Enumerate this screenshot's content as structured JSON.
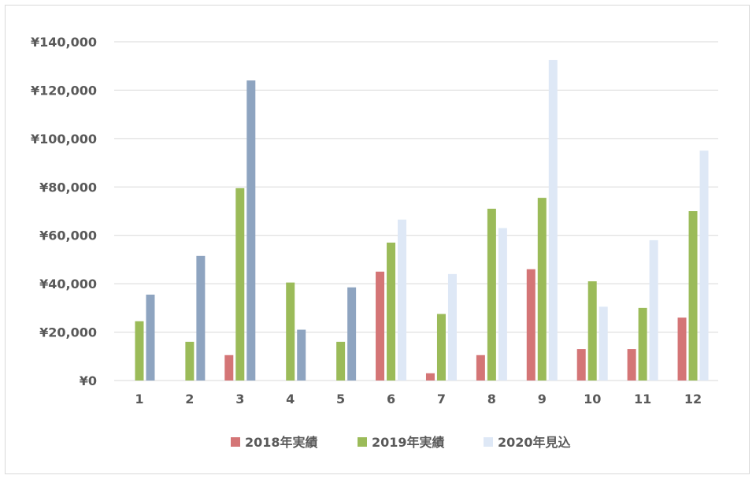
{
  "chart_data": {
    "type": "bar",
    "title": "",
    "xlabel": "",
    "ylabel": "",
    "ylim": [
      0,
      140000
    ],
    "y_ticks": [
      0,
      20000,
      40000,
      60000,
      80000,
      100000,
      120000,
      140000
    ],
    "y_tick_labels": [
      "¥0",
      "¥20,000",
      "¥40,000",
      "¥60,000",
      "¥80,000",
      "¥100,000",
      "¥120,000",
      "¥140,000"
    ],
    "categories": [
      "1",
      "2",
      "3",
      "4",
      "5",
      "6",
      "7",
      "8",
      "9",
      "10",
      "11",
      "12"
    ],
    "grid": true,
    "legend_position": "bottom",
    "series": [
      {
        "name": "2018年実績",
        "color": "#d47576",
        "values": [
          0,
          0,
          10500,
          0,
          0,
          45000,
          3000,
          10500,
          46000,
          13000,
          13000,
          26000
        ]
      },
      {
        "name": "2019年実績",
        "color": "#9bbb59",
        "values": [
          24500,
          16000,
          79500,
          40500,
          16000,
          57000,
          27500,
          71000,
          75500,
          41000,
          30000,
          70000
        ]
      },
      {
        "name": "2020年見込",
        "color": "#dee8f6",
        "values": [
          35500,
          51500,
          124000,
          21000,
          38500,
          66500,
          44000,
          63000,
          132500,
          30500,
          58000,
          95000
        ],
        "point_colors": [
          "#8ea4c0",
          "#8ea4c0",
          "#8ea4c0",
          "#8ea4c0",
          "#8ea4c0",
          "#dee8f6",
          "#dee8f6",
          "#dee8f6",
          "#dee8f6",
          "#dee8f6",
          "#dee8f6",
          "#dee8f6"
        ]
      }
    ]
  }
}
